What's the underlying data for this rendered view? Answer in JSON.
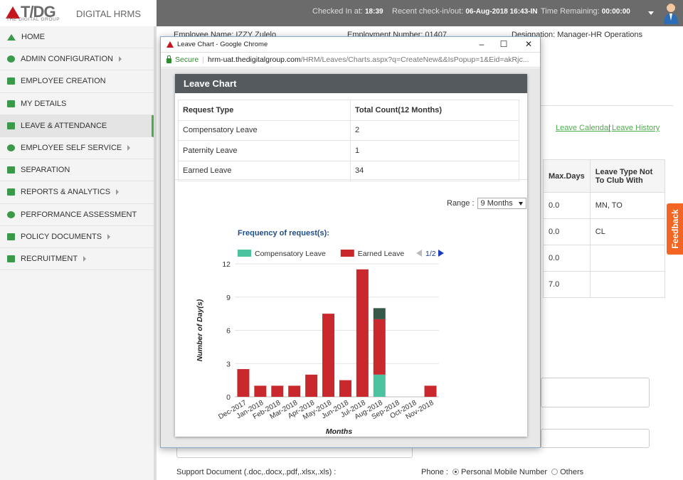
{
  "app": {
    "logo_text": "T/DG",
    "logo_sub": "THE DIGITAL GROUP",
    "title": "DIGITAL HRMS"
  },
  "topbar": {
    "checked_in_label": "Checked In at:",
    "checked_in_value": "18:39",
    "recent_label": "Recent check-in/out:",
    "recent_value": "06-Aug-2018 16:43-IN",
    "remaining_label": "Time Remaining:",
    "remaining_value": "00:00:00"
  },
  "sidebar": {
    "items": [
      {
        "label": "HOME",
        "icon": "home-icon",
        "arrow": false
      },
      {
        "label": "ADMIN CONFIGURATION",
        "icon": "gear-icon",
        "arrow": true
      },
      {
        "label": "EMPLOYEE CREATION",
        "icon": "users-icon",
        "arrow": false
      },
      {
        "label": "MY DETAILS",
        "icon": "id-card-icon",
        "arrow": false
      },
      {
        "label": "LEAVE & ATTENDANCE",
        "icon": "calendar-icon",
        "arrow": false,
        "active": true
      },
      {
        "label": "EMPLOYEE SELF SERVICE",
        "icon": "user-icon",
        "arrow": true
      },
      {
        "label": "SEPARATION",
        "icon": "download-icon",
        "arrow": false
      },
      {
        "label": "REPORTS & ANALYTICS",
        "icon": "book-icon",
        "arrow": true
      },
      {
        "label": "PERFORMANCE ASSESSMENT",
        "icon": "user-icon",
        "arrow": false
      },
      {
        "label": "POLICY DOCUMENTS",
        "icon": "file-icon",
        "arrow": true
      },
      {
        "label": "RECRUITMENT",
        "icon": "users-icon",
        "arrow": true
      }
    ]
  },
  "background": {
    "employee_name": "Employee Name: IZZY Zulelo",
    "employment_number": "Employment Number: 01407",
    "designation": "Designation: Manager-HR Operations",
    "leave_calendar": "Leave Calendar",
    "link_sep": "|",
    "leave_history": "Leave History",
    "table_headers": [
      "Max.Days",
      "Leave Type Not To Club With"
    ],
    "table_rows": [
      [
        "0.0",
        "MN, TO"
      ],
      [
        "0.0",
        "CL"
      ],
      [
        "0.0",
        ""
      ],
      [
        "7.0",
        ""
      ]
    ],
    "support_doc": "Support Document (.doc,.docx,.pdf,.xlsx,.xls) :",
    "phone_label": "Phone :",
    "phone_option_1": "Personal Mobile Number",
    "phone_option_2": "Others",
    "feedback": "Feedback"
  },
  "popup": {
    "window_title": "Leave Chart - Google Chrome",
    "secure_label": "Secure",
    "url_host": "hrm-uat.thedigitalgroup.com",
    "url_path": "/HRM/Leaves/Charts.aspx?q=CreateNew&&IsPopup=1&Eid=akRjc...",
    "card_title": "Leave Chart",
    "table_headers": [
      "Request Type",
      "Total Count(12 Months)"
    ],
    "table_rows": [
      [
        "Compensatory Leave",
        "2"
      ],
      [
        "Paternity Leave",
        "1"
      ],
      [
        "Earned Leave",
        "34"
      ]
    ],
    "range_label": "Range :",
    "range_value": "9 Months",
    "legend_pager": "1/2"
  },
  "chart_data": {
    "type": "bar",
    "stacked": true,
    "title": "Frequency of request(s):",
    "xlabel": "Months",
    "ylabel": "Number of Day(s)",
    "ylim": [
      0,
      12
    ],
    "yticks": [
      0,
      3,
      6,
      9,
      12
    ],
    "categories": [
      "Dec-2017",
      "Jan-2018",
      "Feb-2018",
      "Mar-2018",
      "Apr-2018",
      "May-2018",
      "Jun-2018",
      "Jul-2018",
      "Aug-2018",
      "Sep-2018",
      "Oct-2018",
      "Nov-2018"
    ],
    "series": [
      {
        "name": "Compensatory Leave",
        "color": "#4bc3a0",
        "values": [
          0,
          0,
          0,
          0,
          0,
          0,
          0,
          0,
          2,
          0,
          0,
          0
        ]
      },
      {
        "name": "Earned Leave",
        "color": "#c9282d",
        "values": [
          2.5,
          1,
          1,
          1,
          2,
          7.5,
          1.5,
          11.5,
          5,
          0,
          0,
          1
        ]
      },
      {
        "color": "#35584a",
        "values": [
          0,
          0,
          0,
          0,
          0,
          0,
          0,
          0,
          1,
          0,
          0,
          0
        ]
      }
    ],
    "legend_position": "top"
  }
}
